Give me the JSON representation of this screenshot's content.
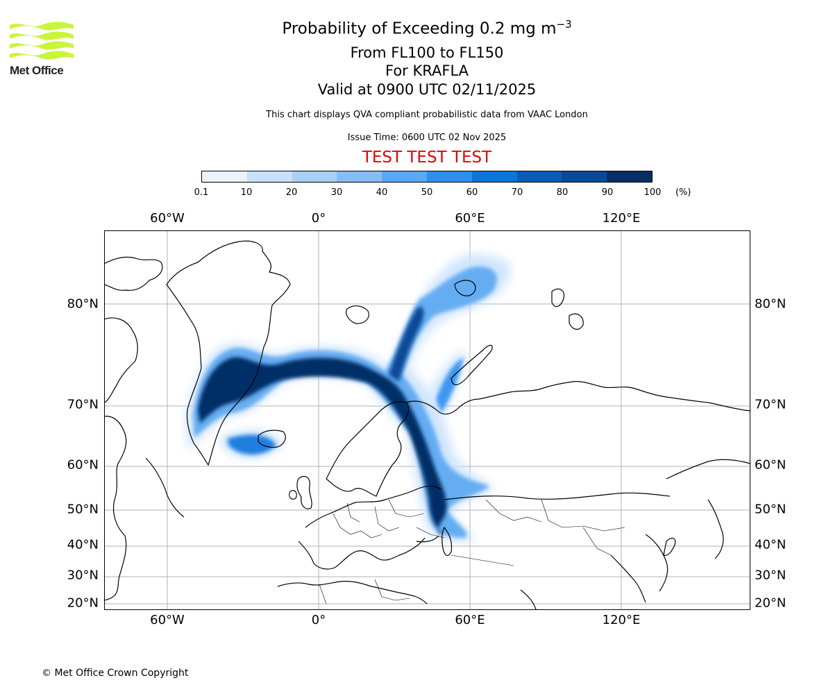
{
  "logo": {
    "text": "Met Office",
    "color": "#c8f53a"
  },
  "title": {
    "main": "Probability of Exceeding 0.2 mg m",
    "superscript": "−3",
    "line2": "From FL100 to FL150",
    "line3": "For KRAFLA",
    "line4": "Valid at 0900 UTC 02/11/2025"
  },
  "subtitle": "This chart displays QVA compliant probabilistic data from VAAC London",
  "issue_time": "Issue Time: 0600 UTC 02 Nov 2025",
  "test_banner": "TEST TEST TEST",
  "colorbar": {
    "ticks": [
      "0.1",
      "10",
      "20",
      "30",
      "40",
      "50",
      "60",
      "70",
      "80",
      "90",
      "100"
    ],
    "units": "(%)",
    "colors": [
      "#eaf4ff",
      "#c8e1fb",
      "#a9d0f7",
      "#86bdf5",
      "#5aa7f2",
      "#2d8ef0",
      "#0d74dc",
      "#0a5cb8",
      "#084a96",
      "#062f66"
    ]
  },
  "map": {
    "lon_labels_top": [
      "60°W",
      "0°",
      "60°E",
      "120°E"
    ],
    "lon_labels_bottom": [
      "60°W",
      "0°",
      "60°E",
      "120°E"
    ],
    "lat_labels": [
      "80°N",
      "70°N",
      "60°N",
      "50°N",
      "40°N",
      "30°N",
      "20°N"
    ]
  },
  "copyright": "© Met Office Crown Copyright"
}
